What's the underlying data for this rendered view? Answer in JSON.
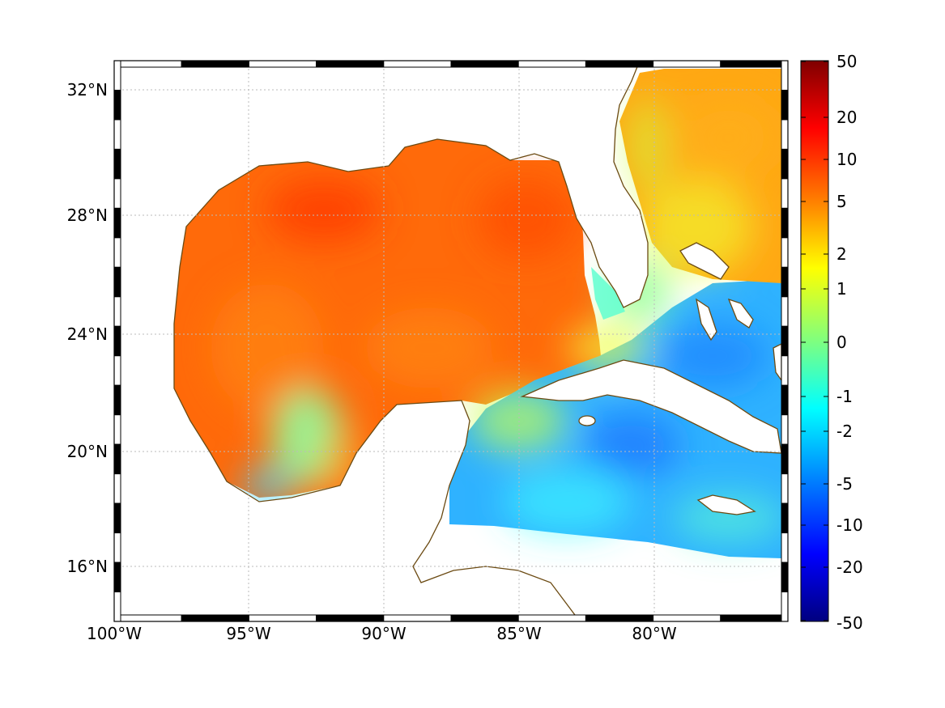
{
  "map": {
    "x_tick_labels": [
      "100°W",
      "95°W",
      "90°W",
      "85°W",
      "80°W"
    ],
    "y_tick_labels": [
      "32°N",
      "28°N",
      "24°N",
      "20°N",
      "16°N"
    ],
    "colors": {
      "land": "#ffffff",
      "coastline": "#6b4a12",
      "grid": "#bbbbbb",
      "frame_dark": "#000000",
      "frame_light": "#ffffff"
    }
  },
  "colorbar": {
    "tick_labels": [
      "50",
      "20",
      "10",
      "5",
      "2",
      "1",
      "0",
      "-1",
      "-2",
      "-5",
      "-10",
      "-20",
      "-50"
    ],
    "colormap": "jet",
    "colors": [
      "#7f0000",
      "#ff0000",
      "#ff7f00",
      "#ffff00",
      "#7fff7f",
      "#00ffff",
      "#007fff",
      "#0000ff",
      "#00007f"
    ]
  }
}
